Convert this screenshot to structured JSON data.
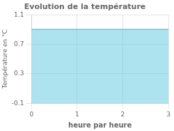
{
  "chart_data": {
    "type": "area",
    "title": "Evolution de la température",
    "xlabel": "heure par heure",
    "ylabel": "Température en °C",
    "x": [
      0,
      3
    ],
    "series": [
      {
        "values": [
          0.9,
          0.9
        ],
        "color": "#5bc8e0"
      }
    ],
    "xlim": [
      0,
      3
    ],
    "xticks": [
      0,
      1,
      2,
      3
    ],
    "ylim": [
      -0.1,
      1.1
    ],
    "yticks": [
      -0.1,
      0.3,
      0.7,
      1.1
    ],
    "grid": true
  }
}
